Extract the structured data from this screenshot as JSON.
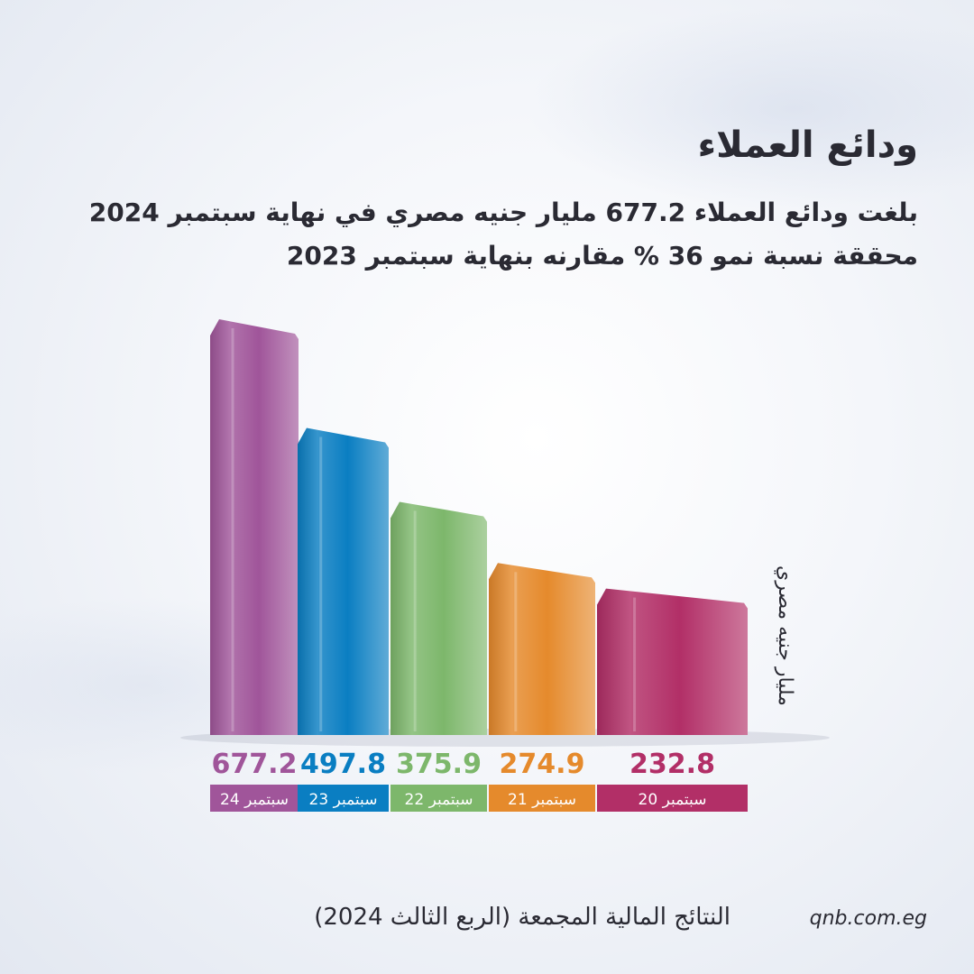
{
  "header": {
    "title": "ودائع العملاء",
    "subtitle_line1": "بلغت ودائع العملاء 677.2 مليار جنيه مصري في نهاية سبتمبر 2024",
    "subtitle_line2": "محققة نسبة نمو 36 % مقارنه بنهاية سبتمبر 2023"
  },
  "chart_data": {
    "type": "bar",
    "title": "",
    "xlabel": "",
    "ylabel": "مليار جنيه مصري",
    "ylim": [
      0,
      700
    ],
    "grid": false,
    "legend": "none",
    "categories": [
      "سبتمبر 24",
      "سبتمبر 23",
      "سبتمبر 22",
      "سبتمبر 21",
      "سبتمبر 20"
    ],
    "values": [
      677.2,
      497.8,
      375.9,
      274.9,
      232.8
    ],
    "value_labels": [
      "677.2",
      "497.8",
      "375.9",
      "274.9",
      "232.8"
    ],
    "colors": [
      "#a0559a",
      "#0a7ec2",
      "#7db76b",
      "#e58a2c",
      "#b22f67"
    ]
  },
  "footer": {
    "title": "النتائج المالية المجمعة (الربع الثالث 2024)",
    "url": "qnb.com.eg"
  }
}
